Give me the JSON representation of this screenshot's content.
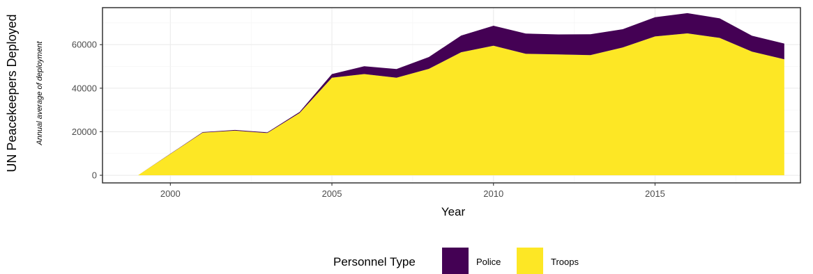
{
  "chart_data": {
    "type": "area",
    "stacked": true,
    "title": "",
    "xlabel": "Year",
    "ylabel": "UN Peacekeepers Deployed",
    "ysublabel": "Annual average of deployment",
    "xlim": [
      1997.9,
      2019.5
    ],
    "ylim": [
      -3500,
      77000
    ],
    "xticks": [
      2000,
      2005,
      2010,
      2015
    ],
    "yticks": [
      0,
      20000,
      40000,
      60000
    ],
    "grid": true,
    "legend_position": "bottom",
    "legend_title": "Personnel Type",
    "x": [
      1999,
      2000,
      2001,
      2002,
      2003,
      2004,
      2005,
      2006,
      2007,
      2008,
      2009,
      2010,
      2011,
      2012,
      2013,
      2014,
      2015,
      2016,
      2017,
      2018,
      2019
    ],
    "series": [
      {
        "name": "Troops",
        "color": "#fde725",
        "values": [
          0,
          9800,
          19600,
          20500,
          19400,
          28600,
          44800,
          46500,
          44800,
          48900,
          56500,
          59500,
          55800,
          55500,
          55200,
          58700,
          63800,
          65200,
          63100,
          56800,
          53300
        ]
      },
      {
        "name": "Police",
        "color": "#440154",
        "values": [
          0,
          100,
          200,
          300,
          300,
          500,
          1700,
          3600,
          4000,
          5400,
          7700,
          9200,
          9300,
          9200,
          9600,
          8400,
          8800,
          9300,
          9000,
          7300,
          7200
        ]
      }
    ]
  }
}
